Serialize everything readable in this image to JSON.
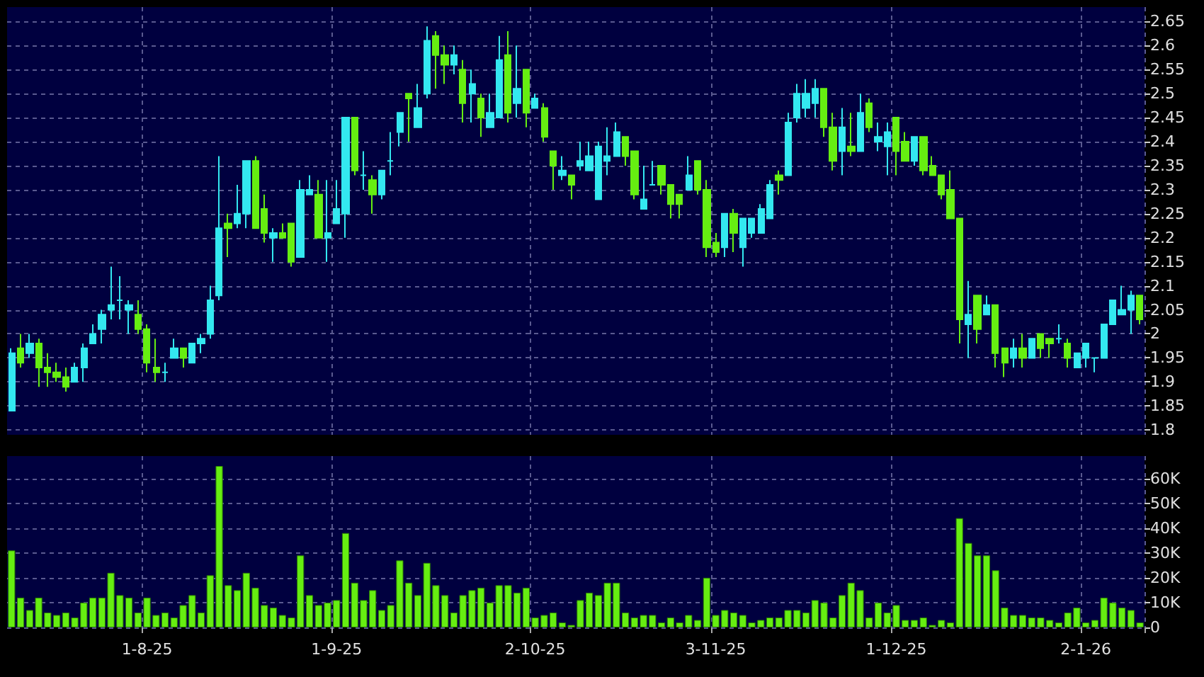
{
  "chart_data": [
    {
      "type": "candlestick",
      "categories": [
        null,
        null,
        null,
        null,
        null,
        null,
        null,
        null,
        null,
        null,
        null,
        null,
        null,
        null,
        null,
        null,
        null,
        null,
        null,
        null,
        null,
        null,
        null,
        null,
        null,
        null,
        null,
        null,
        null,
        null,
        null,
        null,
        null,
        null,
        null,
        null,
        null,
        null,
        null,
        null,
        null,
        null,
        null,
        null,
        null,
        null,
        null,
        null,
        null,
        null,
        null,
        null,
        null,
        null,
        null,
        null,
        null,
        null,
        null,
        null,
        null,
        null,
        null,
        null,
        null,
        null,
        null,
        null,
        null,
        null,
        null,
        null,
        null,
        null,
        null,
        null,
        null,
        null,
        null,
        null,
        null,
        null,
        null,
        null,
        null,
        null,
        null,
        null,
        null,
        null,
        null,
        null,
        null,
        null,
        null,
        null,
        null,
        null,
        null,
        null,
        null,
        null,
        null,
        null,
        null,
        null,
        null,
        null,
        null,
        null,
        null,
        null,
        null,
        null,
        null,
        null,
        null,
        null,
        null,
        null,
        null,
        null,
        null,
        null,
        null,
        null
      ],
      "ohlc": [
        [
          1.84,
          1.97,
          1.84,
          1.96
        ],
        [
          1.97,
          2.0,
          1.93,
          1.94
        ],
        [
          1.96,
          2.0,
          1.95,
          1.98
        ],
        [
          1.98,
          1.99,
          1.89,
          1.93
        ],
        [
          1.93,
          1.96,
          1.89,
          1.92
        ],
        [
          1.92,
          1.94,
          1.9,
          1.91
        ],
        [
          1.91,
          1.93,
          1.88,
          1.89
        ],
        [
          1.9,
          1.94,
          1.9,
          1.93
        ],
        [
          1.93,
          1.98,
          1.9,
          1.97
        ],
        [
          1.98,
          2.02,
          1.98,
          2.0
        ],
        [
          2.01,
          2.05,
          1.98,
          2.04
        ],
        [
          2.05,
          2.14,
          2.03,
          2.06
        ],
        [
          2.07,
          2.12,
          2.03,
          2.07
        ],
        [
          2.05,
          2.07,
          2.0,
          2.06
        ],
        [
          2.04,
          2.07,
          2.0,
          2.01
        ],
        [
          2.01,
          2.02,
          1.92,
          1.94
        ],
        [
          1.93,
          1.99,
          1.9,
          1.92
        ],
        [
          1.92,
          1.94,
          1.9,
          1.92
        ],
        [
          1.95,
          1.99,
          1.95,
          1.97
        ],
        [
          1.97,
          1.97,
          1.93,
          1.95
        ],
        [
          1.94,
          1.98,
          1.94,
          1.98
        ],
        [
          1.98,
          2.0,
          1.96,
          1.99
        ],
        [
          2.0,
          2.1,
          1.99,
          2.07
        ],
        [
          2.08,
          2.37,
          2.07,
          2.22
        ],
        [
          2.23,
          2.25,
          2.16,
          2.22
        ],
        [
          2.23,
          2.31,
          2.22,
          2.25
        ],
        [
          2.25,
          2.36,
          2.22,
          2.36
        ],
        [
          2.36,
          2.37,
          2.22,
          2.22
        ],
        [
          2.26,
          2.29,
          2.19,
          2.21
        ],
        [
          2.2,
          2.22,
          2.15,
          2.21
        ],
        [
          2.21,
          2.23,
          2.2,
          2.2
        ],
        [
          2.23,
          2.23,
          2.14,
          2.15
        ],
        [
          2.16,
          2.32,
          2.16,
          2.3
        ],
        [
          2.29,
          2.33,
          2.29,
          2.3
        ],
        [
          2.29,
          2.32,
          2.2,
          2.2
        ],
        [
          2.2,
          2.32,
          2.15,
          2.21
        ],
        [
          2.23,
          2.32,
          2.23,
          2.26
        ],
        [
          2.25,
          2.45,
          2.2,
          2.45
        ],
        [
          2.45,
          2.45,
          2.33,
          2.34
        ],
        [
          2.33,
          2.38,
          2.3,
          2.33
        ],
        [
          2.32,
          2.33,
          2.25,
          2.29
        ],
        [
          2.29,
          2.34,
          2.28,
          2.34
        ],
        [
          2.36,
          2.42,
          2.33,
          2.36
        ],
        [
          2.42,
          2.46,
          2.39,
          2.46
        ],
        [
          2.5,
          2.5,
          2.4,
          2.49
        ],
        [
          2.43,
          2.52,
          2.43,
          2.47
        ],
        [
          2.5,
          2.64,
          2.49,
          2.61
        ],
        [
          2.62,
          2.63,
          2.51,
          2.58
        ],
        [
          2.58,
          2.6,
          2.52,
          2.56
        ],
        [
          2.56,
          2.6,
          2.54,
          2.58
        ],
        [
          2.55,
          2.57,
          2.44,
          2.48
        ],
        [
          2.5,
          2.55,
          2.44,
          2.52
        ],
        [
          2.49,
          2.5,
          2.41,
          2.45
        ],
        [
          2.43,
          2.5,
          2.43,
          2.46
        ],
        [
          2.45,
          2.62,
          2.45,
          2.57
        ],
        [
          2.58,
          2.63,
          2.44,
          2.46
        ],
        [
          2.48,
          2.6,
          2.45,
          2.51
        ],
        [
          2.55,
          2.55,
          2.43,
          2.46
        ],
        [
          2.47,
          2.5,
          2.47,
          2.49
        ],
        [
          2.47,
          2.48,
          2.4,
          2.41
        ],
        [
          2.38,
          2.38,
          2.3,
          2.35
        ],
        [
          2.33,
          2.37,
          2.32,
          2.34
        ],
        [
          2.33,
          2.33,
          2.28,
          2.31
        ],
        [
          2.35,
          2.4,
          2.34,
          2.36
        ],
        [
          2.34,
          2.4,
          2.34,
          2.37
        ],
        [
          2.28,
          2.4,
          2.28,
          2.39
        ],
        [
          2.36,
          2.43,
          2.33,
          2.37
        ],
        [
          2.37,
          2.44,
          2.37,
          2.42
        ],
        [
          2.41,
          2.41,
          2.35,
          2.37
        ],
        [
          2.38,
          2.38,
          2.28,
          2.29
        ],
        [
          2.26,
          2.35,
          2.26,
          2.28
        ],
        [
          2.31,
          2.36,
          2.31,
          2.31
        ],
        [
          2.35,
          2.35,
          2.29,
          2.31
        ],
        [
          2.31,
          2.31,
          2.24,
          2.27
        ],
        [
          2.29,
          2.29,
          2.24,
          2.27
        ],
        [
          2.3,
          2.37,
          2.3,
          2.33
        ],
        [
          2.36,
          2.36,
          2.29,
          2.3
        ],
        [
          2.3,
          2.32,
          2.16,
          2.18
        ],
        [
          2.19,
          2.21,
          2.16,
          2.17
        ],
        [
          2.18,
          2.25,
          2.16,
          2.25
        ],
        [
          2.25,
          2.26,
          2.17,
          2.21
        ],
        [
          2.18,
          2.24,
          2.14,
          2.24
        ],
        [
          2.21,
          2.24,
          2.2,
          2.24
        ],
        [
          2.21,
          2.27,
          2.21,
          2.26
        ],
        [
          2.24,
          2.32,
          2.24,
          2.31
        ],
        [
          2.33,
          2.34,
          2.29,
          2.32
        ],
        [
          2.33,
          2.46,
          2.33,
          2.44
        ],
        [
          2.45,
          2.52,
          2.44,
          2.5
        ],
        [
          2.47,
          2.53,
          2.45,
          2.5
        ],
        [
          2.48,
          2.53,
          2.45,
          2.51
        ],
        [
          2.51,
          2.51,
          2.41,
          2.43
        ],
        [
          2.43,
          2.46,
          2.34,
          2.36
        ],
        [
          2.38,
          2.47,
          2.33,
          2.43
        ],
        [
          2.39,
          2.46,
          2.37,
          2.38
        ],
        [
          2.38,
          2.5,
          2.38,
          2.46
        ],
        [
          2.48,
          2.49,
          2.42,
          2.43
        ],
        [
          2.4,
          2.44,
          2.38,
          2.41
        ],
        [
          2.39,
          2.44,
          2.33,
          2.42
        ],
        [
          2.45,
          2.45,
          2.33,
          2.38
        ],
        [
          2.4,
          2.42,
          2.36,
          2.36
        ],
        [
          2.36,
          2.41,
          2.35,
          2.41
        ],
        [
          2.41,
          2.41,
          2.33,
          2.34
        ],
        [
          2.35,
          2.37,
          2.33,
          2.33
        ],
        [
          2.33,
          2.33,
          2.28,
          2.29
        ],
        [
          2.3,
          2.34,
          2.24,
          2.24
        ],
        [
          2.24,
          2.24,
          1.98,
          2.03
        ],
        [
          2.02,
          2.11,
          1.95,
          2.04
        ],
        [
          2.08,
          2.08,
          1.98,
          2.01
        ],
        [
          2.04,
          2.08,
          2.04,
          2.06
        ],
        [
          2.06,
          2.06,
          1.93,
          1.96
        ],
        [
          1.97,
          1.97,
          1.91,
          1.94
        ],
        [
          1.95,
          1.99,
          1.93,
          1.97
        ],
        [
          1.97,
          2.0,
          1.93,
          1.95
        ],
        [
          1.95,
          1.99,
          1.95,
          1.99
        ],
        [
          2.0,
          2.0,
          1.95,
          1.97
        ],
        [
          1.99,
          1.99,
          1.95,
          1.98
        ],
        [
          1.99,
          2.02,
          1.98,
          1.99
        ],
        [
          1.98,
          1.99,
          1.93,
          1.95
        ],
        [
          1.93,
          1.96,
          1.93,
          1.96
        ],
        [
          1.95,
          1.98,
          1.93,
          1.98
        ],
        [
          1.95,
          1.95,
          1.92,
          1.95
        ],
        [
          1.95,
          2.02,
          1.95,
          2.02
        ],
        [
          2.02,
          2.07,
          2.02,
          2.07
        ],
        [
          2.04,
          2.1,
          2.04,
          2.05
        ],
        [
          2.05,
          2.09,
          2.0,
          2.08
        ],
        [
          2.08,
          2.08,
          2.02,
          2.03
        ]
      ],
      "colors": [
        "#33e8f0",
        "#66ee11",
        "#33e8f0",
        "#66ee11",
        "#66ee11",
        "#66ee11",
        "#66ee11",
        "#33e8f0",
        "#33e8f0",
        "#33e8f0",
        "#33e8f0",
        "#33e8f0",
        "#33e8f0",
        "#33e8f0",
        "#66ee11",
        "#66ee11",
        "#66ee11",
        "#33e8f0",
        "#33e8f0",
        "#66ee11",
        "#33e8f0",
        "#33e8f0",
        "#33e8f0",
        "#33e8f0",
        "#66ee11",
        "#33e8f0",
        "#33e8f0",
        "#66ee11",
        "#66ee11",
        "#33e8f0",
        "#66ee11",
        "#66ee11",
        "#33e8f0",
        "#33e8f0",
        "#66ee11",
        "#33e8f0",
        "#33e8f0",
        "#33e8f0",
        "#66ee11",
        "#33e8f0",
        "#66ee11",
        "#33e8f0",
        "#33e8f0",
        "#33e8f0",
        "#66ee11",
        "#33e8f0",
        "#33e8f0",
        "#66ee11",
        "#66ee11",
        "#33e8f0",
        "#66ee11",
        "#33e8f0",
        "#66ee11",
        "#33e8f0",
        "#33e8f0",
        "#66ee11",
        "#33e8f0",
        "#66ee11",
        "#33e8f0",
        "#66ee11",
        "#66ee11",
        "#33e8f0",
        "#66ee11",
        "#33e8f0",
        "#33e8f0",
        "#33e8f0",
        "#33e8f0",
        "#33e8f0",
        "#66ee11",
        "#66ee11",
        "#33e8f0",
        "#33e8f0",
        "#66ee11",
        "#66ee11",
        "#66ee11",
        "#33e8f0",
        "#66ee11",
        "#66ee11",
        "#66ee11",
        "#33e8f0",
        "#66ee11",
        "#33e8f0",
        "#33e8f0",
        "#33e8f0",
        "#33e8f0",
        "#66ee11",
        "#33e8f0",
        "#33e8f0",
        "#33e8f0",
        "#33e8f0",
        "#66ee11",
        "#66ee11",
        "#33e8f0",
        "#66ee11",
        "#33e8f0",
        "#66ee11",
        "#33e8f0",
        "#33e8f0",
        "#66ee11",
        "#66ee11",
        "#33e8f0",
        "#66ee11",
        "#66ee11",
        "#66ee11",
        "#66ee11",
        "#66ee11",
        "#33e8f0",
        "#66ee11",
        "#33e8f0",
        "#66ee11",
        "#66ee11",
        "#33e8f0",
        "#66ee11",
        "#33e8f0",
        "#66ee11",
        "#66ee11",
        "#33e8f0",
        "#66ee11",
        "#33e8f0",
        "#33e8f0",
        "#33e8f0",
        "#33e8f0",
        "#33e8f0",
        "#33e8f0",
        "#33e8f0",
        "#66ee11"
      ],
      "ylim": [
        1.79,
        2.68
      ],
      "yticks": [
        1.8,
        1.85,
        1.9,
        1.95,
        2,
        2.05,
        2.1,
        2.15,
        2.2,
        2.25,
        2.3,
        2.35,
        2.4,
        2.45,
        2.5,
        2.55,
        2.6,
        2.65
      ],
      "grid": true,
      "tick_labels": "y"
    },
    {
      "type": "bar",
      "categories": [
        null,
        null,
        null,
        null,
        null,
        null,
        null,
        null,
        null,
        null,
        null,
        null,
        null,
        null,
        null,
        "1-8-25",
        null,
        null,
        null,
        null,
        null,
        null,
        null,
        null,
        null,
        null,
        null,
        null,
        null,
        null,
        null,
        null,
        null,
        null,
        null,
        null,
        "1-9-25",
        null,
        null,
        null,
        null,
        null,
        null,
        null,
        null,
        null,
        null,
        null,
        null,
        null,
        null,
        null,
        null,
        null,
        null,
        null,
        null,
        null,
        "2-10-25",
        null,
        null,
        null,
        null,
        null,
        null,
        null,
        null,
        null,
        null,
        null,
        null,
        null,
        null,
        null,
        null,
        null,
        null,
        null,
        "3-11-25",
        null,
        null,
        null,
        null,
        null,
        null,
        null,
        null,
        null,
        null,
        null,
        null,
        null,
        null,
        null,
        null,
        null,
        null,
        null,
        "1-12-25",
        null,
        null,
        null,
        null,
        null,
        null,
        null,
        null,
        null,
        null,
        null,
        null,
        null,
        null,
        null,
        null,
        null,
        null,
        null,
        null,
        "2-1-26",
        null,
        null,
        null,
        null,
        null,
        null
      ],
      "values": [
        31000,
        12000,
        7000,
        12000,
        6000,
        5000,
        6000,
        4000,
        10000,
        12000,
        12000,
        22000,
        13000,
        12000,
        6000,
        12000,
        5000,
        6000,
        4000,
        9000,
        13000,
        6000,
        21000,
        65000,
        17000,
        15000,
        22000,
        16000,
        9000,
        8000,
        5000,
        4000,
        29000,
        13000,
        9000,
        10000,
        11000,
        38000,
        18000,
        11000,
        15000,
        7000,
        9000,
        27000,
        18000,
        13000,
        26000,
        17000,
        13000,
        6000,
        13000,
        15000,
        16000,
        10000,
        17000,
        17000,
        14000,
        16000,
        4000,
        5000,
        6000,
        2000,
        1000,
        11000,
        14000,
        13000,
        18000,
        18000,
        6000,
        4000,
        5000,
        5000,
        2000,
        4000,
        2000,
        5000,
        3000,
        20000,
        5000,
        7000,
        6000,
        5000,
        2000,
        3000,
        4000,
        4000,
        7000,
        7000,
        6000,
        11000,
        10000,
        4000,
        13000,
        18000,
        15000,
        4000,
        10000,
        6000,
        9000,
        3000,
        3000,
        4000,
        1000,
        3000,
        2000,
        44000,
        34000,
        29000,
        29000,
        23000,
        8000,
        5000,
        5000,
        4000,
        4000,
        3000,
        2000,
        6000,
        8000,
        2000,
        3000,
        12000,
        10000,
        8000,
        7000,
        2000
      ],
      "color": "#66ee11",
      "ylim": [
        0,
        69000
      ],
      "yticks": [
        0,
        {
          "value": 10000,
          "label": "10K"
        },
        {
          "value": 20000,
          "label": "20K"
        },
        {
          "value": 30000,
          "label": "30K"
        },
        {
          "value": 40000,
          "label": "40K"
        },
        {
          "value": 50000,
          "label": "50K"
        },
        {
          "value": 60000,
          "label": "60K"
        }
      ],
      "grid": true
    }
  ]
}
